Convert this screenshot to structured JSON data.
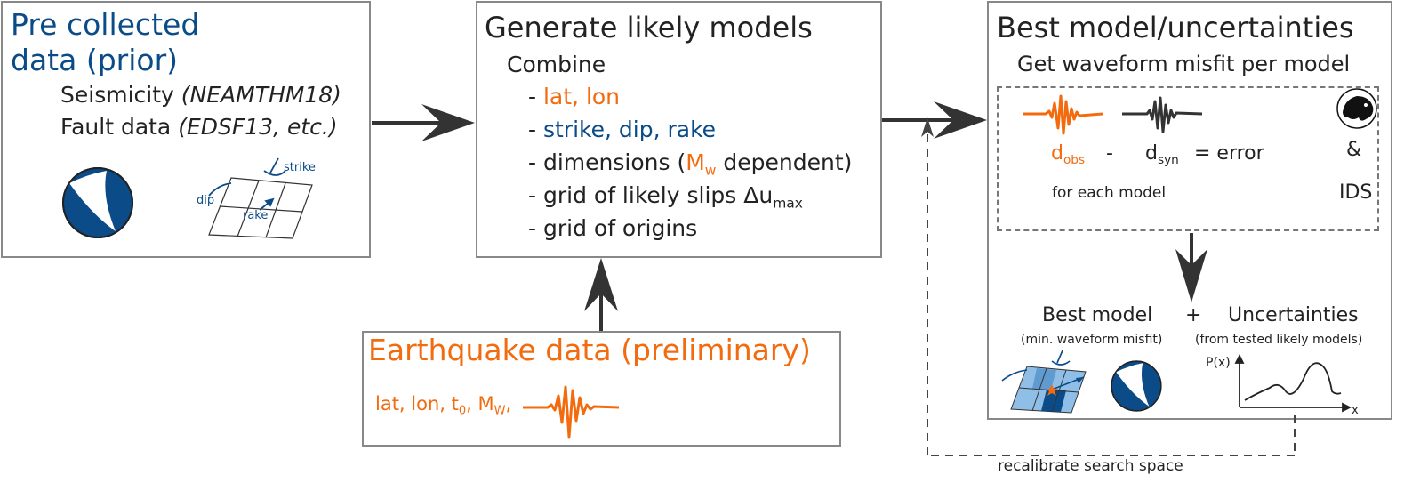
{
  "colors": {
    "blue": "#0b4c88",
    "orange": "#f26b0f",
    "dark": "#222222",
    "border": "#888888",
    "light_blue": "#7fb1dd"
  },
  "prior": {
    "title_line1": "Pre collected",
    "title_line2": "data (prior)",
    "seismicity_label": "Seismicity",
    "seismicity_source": "(NEAMTHM18)",
    "fault_label": "Fault data",
    "fault_source": "(EDSF13, etc.)",
    "strike_label": "strike",
    "dip_label": "dip",
    "rake_label": "rake",
    "icons": [
      "beachball-icon",
      "fault-grid-icon"
    ]
  },
  "generate": {
    "title": "Generate likely models",
    "combine": "Combine",
    "dash": "-",
    "item1": "lat, lon",
    "item2": "strike, dip, rake",
    "item3_pre": "dimensions (",
    "item3_m": "M",
    "item3_sub": "w",
    "item3_post": " dependent)",
    "item4_pre": "grid of likely slips Δu",
    "item4_sub": "max",
    "item5": "grid of origins"
  },
  "quake": {
    "title": "Earthquake data (preliminary)",
    "params_pre": "lat, lon, t",
    "params_t_sub": "0",
    "params_mid": ", M",
    "params_m_sub": "W",
    "params_post": ",",
    "icons": [
      "waveform-icon"
    ]
  },
  "best": {
    "title": "Best model/uncertainties",
    "subtitle": "Get waveform misfit per model",
    "d_letter": "d",
    "dobs_sub": "obs",
    "minus": "-",
    "dsyn_sub": "syn",
    "equals_error": "= error",
    "for_each": "for each model",
    "amp": "&",
    "ids": "IDS",
    "best_model": "Best model",
    "plus": "+",
    "uncertainties": "Uncertainties",
    "best_note": "(min. waveform misfit)",
    "uncert_note": "(from tested likely models)",
    "px_label": "P(x)",
    "x_label": "x",
    "icons": [
      "dobs-waveform-icon",
      "dsyn-waveform-icon",
      "ids-logo-icon",
      "fault-grid-icon",
      "beachball-icon",
      "pdf-plot-icon"
    ]
  },
  "feedback": {
    "label": "recalibrate search space"
  }
}
